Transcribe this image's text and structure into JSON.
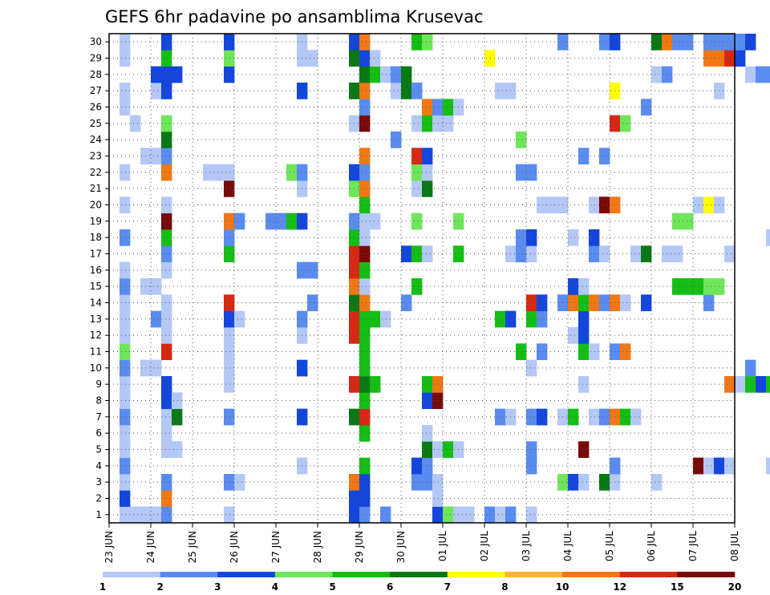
{
  "chart_data": {
    "type": "heatmap",
    "title": "GEFS 6hr padavine po ansamblima Krusevac",
    "xlabel": "",
    "ylabel": "",
    "x_tick_labels": [
      "23 JUN",
      "24 JUN",
      "25 JUN",
      "26 JUN",
      "27 JUN",
      "28 JUN",
      "29 JUN",
      "30 JUN",
      "01 JUL",
      "02 JUL",
      "03 JUL",
      "04 JUL",
      "05 JUL",
      "06 JUL",
      "07 JUL",
      "08 JUL"
    ],
    "y_tick_labels": [
      "1",
      "2",
      "3",
      "4",
      "5",
      "6",
      "7",
      "8",
      "9",
      "10",
      "11",
      "12",
      "13",
      "14",
      "15",
      "16",
      "17",
      "18",
      "19",
      "20",
      "21",
      "22",
      "23",
      "24",
      "25",
      "26",
      "27",
      "28",
      "29",
      "30"
    ],
    "x_range": [
      "23 JUN 00Z",
      "08 JUL 00Z"
    ],
    "x_step_hours": 6,
    "members": 30,
    "grid": true,
    "legend_placement": "bottom",
    "colorbar": {
      "labels": [
        "1",
        "2",
        "3",
        "4",
        "5",
        "6",
        "7",
        "8",
        "10",
        "12",
        "15",
        "20"
      ],
      "colors": [
        "#b4c8f5",
        "#5a8cf0",
        "#1446dc",
        "#6ee65a",
        "#14be14",
        "#0a7814",
        "#ffff00",
        "#ffb432",
        "#f07814",
        "#d72814",
        "#780a0a"
      ]
    },
    "cells": [
      [
        1,
        1,
        1
      ],
      [
        1,
        2,
        1
      ],
      [
        1,
        3,
        1
      ],
      [
        1,
        4,
        1
      ],
      [
        1,
        5,
        2
      ],
      [
        1,
        11,
        1
      ],
      [
        1,
        23,
        3
      ],
      [
        1,
        24,
        2
      ],
      [
        1,
        26,
        2
      ],
      [
        1,
        31,
        3
      ],
      [
        1,
        32,
        4
      ],
      [
        1,
        33,
        1
      ],
      [
        1,
        34,
        1
      ],
      [
        1,
        36,
        2
      ],
      [
        1,
        37,
        1
      ],
      [
        1,
        38,
        2
      ],
      [
        1,
        40,
        1
      ],
      [
        2,
        1,
        3
      ],
      [
        2,
        5,
        9
      ],
      [
        2,
        23,
        3
      ],
      [
        2,
        24,
        3
      ],
      [
        2,
        31,
        1
      ],
      [
        3,
        1,
        1
      ],
      [
        3,
        5,
        2
      ],
      [
        3,
        11,
        2
      ],
      [
        3,
        12,
        1
      ],
      [
        3,
        23,
        9
      ],
      [
        3,
        24,
        3
      ],
      [
        3,
        29,
        2
      ],
      [
        3,
        30,
        2
      ],
      [
        3,
        31,
        1
      ],
      [
        3,
        43,
        4
      ],
      [
        3,
        44,
        3
      ],
      [
        3,
        45,
        1
      ],
      [
        3,
        47,
        6
      ],
      [
        3,
        48,
        1
      ],
      [
        3,
        52,
        1
      ],
      [
        4,
        1,
        2
      ],
      [
        4,
        18,
        1
      ],
      [
        4,
        24,
        5
      ],
      [
        4,
        29,
        3
      ],
      [
        4,
        30,
        2
      ],
      [
        4,
        40,
        2
      ],
      [
        4,
        48,
        2
      ],
      [
        4,
        56,
        11
      ],
      [
        4,
        57,
        1
      ],
      [
        4,
        58,
        3
      ],
      [
        4,
        59,
        1
      ],
      [
        4,
        63,
        1
      ],
      [
        4,
        65,
        1
      ],
      [
        5,
        1,
        1
      ],
      [
        5,
        5,
        1
      ],
      [
        5,
        6,
        1
      ],
      [
        5,
        30,
        6
      ],
      [
        5,
        31,
        1
      ],
      [
        5,
        32,
        5
      ],
      [
        5,
        33,
        1
      ],
      [
        5,
        40,
        2
      ],
      [
        5,
        45,
        11
      ],
      [
        6,
        1,
        1
      ],
      [
        6,
        5,
        1
      ],
      [
        6,
        24,
        5
      ],
      [
        6,
        30,
        1
      ],
      [
        7,
        1,
        2
      ],
      [
        7,
        5,
        1
      ],
      [
        7,
        6,
        6
      ],
      [
        7,
        11,
        2
      ],
      [
        7,
        18,
        3
      ],
      [
        7,
        23,
        6
      ],
      [
        7,
        24,
        10
      ],
      [
        7,
        37,
        2
      ],
      [
        7,
        38,
        1
      ],
      [
        7,
        40,
        2
      ],
      [
        7,
        41,
        3
      ],
      [
        7,
        43,
        1
      ],
      [
        7,
        44,
        5
      ],
      [
        7,
        46,
        1
      ],
      [
        7,
        47,
        2
      ],
      [
        7,
        48,
        9
      ],
      [
        7,
        49,
        5
      ],
      [
        7,
        50,
        1
      ],
      [
        7,
        64,
        3
      ],
      [
        7,
        65,
        2
      ],
      [
        8,
        1,
        1
      ],
      [
        8,
        5,
        3
      ],
      [
        8,
        6,
        1
      ],
      [
        8,
        24,
        5
      ],
      [
        8,
        30,
        3
      ],
      [
        8,
        31,
        11
      ],
      [
        9,
        1,
        1
      ],
      [
        9,
        5,
        3
      ],
      [
        9,
        11,
        1
      ],
      [
        9,
        23,
        10
      ],
      [
        9,
        24,
        6
      ],
      [
        9,
        25,
        5
      ],
      [
        9,
        30,
        5
      ],
      [
        9,
        31,
        9
      ],
      [
        9,
        45,
        1
      ],
      [
        9,
        59,
        9
      ],
      [
        9,
        60,
        1
      ],
      [
        9,
        61,
        5
      ],
      [
        9,
        62,
        3
      ],
      [
        9,
        63,
        5
      ],
      [
        9,
        64,
        3
      ],
      [
        9,
        65,
        3
      ],
      [
        10,
        1,
        2
      ],
      [
        10,
        3,
        1
      ],
      [
        10,
        4,
        1
      ],
      [
        10,
        11,
        1
      ],
      [
        10,
        18,
        3
      ],
      [
        10,
        24,
        5
      ],
      [
        10,
        40,
        1
      ],
      [
        10,
        61,
        2
      ],
      [
        11,
        1,
        4
      ],
      [
        11,
        5,
        10
      ],
      [
        11,
        11,
        1
      ],
      [
        11,
        24,
        5
      ],
      [
        11,
        39,
        5
      ],
      [
        11,
        41,
        2
      ],
      [
        11,
        45,
        5
      ],
      [
        11,
        46,
        1
      ],
      [
        11,
        48,
        2
      ],
      [
        11,
        49,
        9
      ],
      [
        12,
        1,
        1
      ],
      [
        12,
        5,
        1
      ],
      [
        12,
        11,
        1
      ],
      [
        12,
        18,
        1
      ],
      [
        12,
        23,
        10
      ],
      [
        12,
        24,
        5
      ],
      [
        12,
        44,
        1
      ],
      [
        12,
        45,
        3
      ],
      [
        13,
        1,
        1
      ],
      [
        13,
        4,
        2
      ],
      [
        13,
        5,
        1
      ],
      [
        13,
        11,
        3
      ],
      [
        13,
        12,
        1
      ],
      [
        13,
        18,
        2
      ],
      [
        13,
        23,
        10
      ],
      [
        13,
        24,
        5
      ],
      [
        13,
        25,
        5
      ],
      [
        13,
        26,
        1
      ],
      [
        13,
        37,
        5
      ],
      [
        13,
        38,
        3
      ],
      [
        13,
        40,
        5
      ],
      [
        13,
        41,
        2
      ],
      [
        13,
        45,
        3
      ],
      [
        14,
        1,
        1
      ],
      [
        14,
        5,
        1
      ],
      [
        14,
        11,
        10
      ],
      [
        14,
        19,
        2
      ],
      [
        14,
        23,
        6
      ],
      [
        14,
        24,
        9
      ],
      [
        14,
        28,
        2
      ],
      [
        14,
        40,
        10
      ],
      [
        14,
        41,
        3
      ],
      [
        14,
        43,
        2
      ],
      [
        14,
        44,
        9
      ],
      [
        14,
        45,
        5
      ],
      [
        14,
        46,
        9
      ],
      [
        14,
        47,
        2
      ],
      [
        14,
        48,
        9
      ],
      [
        14,
        49,
        1
      ],
      [
        14,
        51,
        3
      ],
      [
        14,
        57,
        2
      ],
      [
        15,
        1,
        2
      ],
      [
        15,
        3,
        1
      ],
      [
        15,
        4,
        1
      ],
      [
        15,
        23,
        9
      ],
      [
        15,
        24,
        1
      ],
      [
        15,
        29,
        5
      ],
      [
        15,
        44,
        3
      ],
      [
        15,
        45,
        1
      ],
      [
        15,
        54,
        5
      ],
      [
        15,
        55,
        5
      ],
      [
        15,
        56,
        5
      ],
      [
        15,
        57,
        4
      ],
      [
        15,
        58,
        4
      ],
      [
        16,
        1,
        1
      ],
      [
        16,
        5,
        1
      ],
      [
        16,
        18,
        2
      ],
      [
        16,
        19,
        2
      ],
      [
        16,
        23,
        10
      ],
      [
        16,
        24,
        5
      ],
      [
        17,
        5,
        2
      ],
      [
        17,
        11,
        5
      ],
      [
        17,
        23,
        10
      ],
      [
        17,
        24,
        11
      ],
      [
        17,
        28,
        3
      ],
      [
        17,
        29,
        5
      ],
      [
        17,
        30,
        1
      ],
      [
        17,
        33,
        5
      ],
      [
        17,
        38,
        1
      ],
      [
        17,
        39,
        2
      ],
      [
        17,
        40,
        1
      ],
      [
        17,
        46,
        2
      ],
      [
        17,
        47,
        1
      ],
      [
        17,
        50,
        1
      ],
      [
        17,
        51,
        6
      ],
      [
        17,
        53,
        1
      ],
      [
        17,
        54,
        1
      ],
      [
        17,
        59,
        1
      ],
      [
        18,
        1,
        2
      ],
      [
        18,
        5,
        5
      ],
      [
        18,
        11,
        2
      ],
      [
        18,
        23,
        5
      ],
      [
        18,
        24,
        1
      ],
      [
        18,
        39,
        2
      ],
      [
        18,
        40,
        3
      ],
      [
        18,
        44,
        1
      ],
      [
        18,
        46,
        3
      ],
      [
        18,
        63,
        1
      ],
      [
        18,
        64,
        1
      ],
      [
        19,
        5,
        11
      ],
      [
        19,
        11,
        9
      ],
      [
        19,
        12,
        2
      ],
      [
        19,
        15,
        2
      ],
      [
        19,
        16,
        2
      ],
      [
        19,
        17,
        5
      ],
      [
        19,
        18,
        3
      ],
      [
        19,
        23,
        2
      ],
      [
        19,
        24,
        1
      ],
      [
        19,
        25,
        1
      ],
      [
        19,
        29,
        4
      ],
      [
        19,
        33,
        4
      ],
      [
        19,
        54,
        4
      ],
      [
        19,
        55,
        4
      ],
      [
        20,
        1,
        1
      ],
      [
        20,
        5,
        1
      ],
      [
        20,
        24,
        5
      ],
      [
        20,
        41,
        1
      ],
      [
        20,
        42,
        1
      ],
      [
        20,
        43,
        1
      ],
      [
        20,
        46,
        1
      ],
      [
        20,
        47,
        11
      ],
      [
        20,
        48,
        9
      ],
      [
        20,
        56,
        1
      ],
      [
        20,
        57,
        7
      ],
      [
        20,
        58,
        1
      ],
      [
        20,
        66,
        3
      ],
      [
        20,
        68,
        11
      ],
      [
        20,
        69,
        6
      ],
      [
        21,
        11,
        11
      ],
      [
        21,
        18,
        1
      ],
      [
        21,
        23,
        4
      ],
      [
        21,
        24,
        9
      ],
      [
        21,
        29,
        1
      ],
      [
        21,
        30,
        6
      ],
      [
        21,
        65,
        2
      ],
      [
        22,
        1,
        1
      ],
      [
        22,
        5,
        9
      ],
      [
        22,
        9,
        1
      ],
      [
        22,
        10,
        1
      ],
      [
        22,
        11,
        1
      ],
      [
        22,
        17,
        4
      ],
      [
        22,
        18,
        2
      ],
      [
        22,
        23,
        3
      ],
      [
        22,
        24,
        2
      ],
      [
        22,
        29,
        4
      ],
      [
        22,
        30,
        1
      ],
      [
        22,
        39,
        2
      ],
      [
        22,
        40,
        2
      ],
      [
        23,
        3,
        1
      ],
      [
        23,
        4,
        1
      ],
      [
        23,
        5,
        2
      ],
      [
        23,
        24,
        9
      ],
      [
        23,
        29,
        10
      ],
      [
        23,
        30,
        3
      ],
      [
        23,
        45,
        2
      ],
      [
        23,
        47,
        2
      ],
      [
        24,
        5,
        6
      ],
      [
        24,
        27,
        2
      ],
      [
        24,
        39,
        4
      ],
      [
        24,
        65,
        4
      ],
      [
        25,
        2,
        1
      ],
      [
        25,
        5,
        4
      ],
      [
        25,
        23,
        1
      ],
      [
        25,
        24,
        11
      ],
      [
        25,
        29,
        1
      ],
      [
        25,
        30,
        5
      ],
      [
        25,
        31,
        1
      ],
      [
        25,
        32,
        1
      ],
      [
        25,
        48,
        10
      ],
      [
        25,
        49,
        4
      ],
      [
        25,
        65,
        4
      ],
      [
        26,
        1,
        1
      ],
      [
        26,
        24,
        2
      ],
      [
        26,
        30,
        9
      ],
      [
        26,
        31,
        2
      ],
      [
        26,
        32,
        5
      ],
      [
        26,
        33,
        1
      ],
      [
        26,
        51,
        2
      ],
      [
        26,
        65,
        1
      ],
      [
        27,
        1,
        1
      ],
      [
        27,
        4,
        1
      ],
      [
        27,
        5,
        3
      ],
      [
        27,
        18,
        3
      ],
      [
        27,
        23,
        6
      ],
      [
        27,
        24,
        9
      ],
      [
        27,
        27,
        1
      ],
      [
        27,
        28,
        6
      ],
      [
        27,
        29,
        2
      ],
      [
        27,
        37,
        1
      ],
      [
        27,
        38,
        1
      ],
      [
        27,
        48,
        7
      ],
      [
        27,
        58,
        1
      ],
      [
        28,
        4,
        3
      ],
      [
        28,
        5,
        3
      ],
      [
        28,
        6,
        3
      ],
      [
        28,
        11,
        3
      ],
      [
        28,
        24,
        6
      ],
      [
        28,
        25,
        5
      ],
      [
        28,
        26,
        1
      ],
      [
        28,
        27,
        2
      ],
      [
        28,
        28,
        6
      ],
      [
        28,
        52,
        1
      ],
      [
        28,
        53,
        2
      ],
      [
        28,
        61,
        1
      ],
      [
        28,
        62,
        2
      ],
      [
        28,
        63,
        2
      ],
      [
        28,
        64,
        3
      ],
      [
        28,
        67,
        1
      ],
      [
        28,
        69,
        9
      ],
      [
        29,
        1,
        1
      ],
      [
        29,
        5,
        5
      ],
      [
        29,
        11,
        4
      ],
      [
        29,
        18,
        1
      ],
      [
        29,
        19,
        1
      ],
      [
        29,
        23,
        6
      ],
      [
        29,
        24,
        3
      ],
      [
        29,
        25,
        1
      ],
      [
        29,
        36,
        7
      ],
      [
        29,
        57,
        9
      ],
      [
        29,
        58,
        9
      ],
      [
        29,
        59,
        10
      ],
      [
        29,
        60,
        3
      ],
      [
        29,
        64,
        2
      ],
      [
        29,
        65,
        1
      ],
      [
        29,
        67,
        1
      ],
      [
        29,
        68,
        3
      ],
      [
        29,
        69,
        5
      ],
      [
        29,
        70,
        4
      ],
      [
        30,
        1,
        1
      ],
      [
        30,
        5,
        3
      ],
      [
        30,
        11,
        3
      ],
      [
        30,
        18,
        1
      ],
      [
        30,
        23,
        3
      ],
      [
        30,
        24,
        9
      ],
      [
        30,
        29,
        5
      ],
      [
        30,
        30,
        4
      ],
      [
        30,
        43,
        2
      ],
      [
        30,
        47,
        2
      ],
      [
        30,
        48,
        3
      ],
      [
        30,
        52,
        6
      ],
      [
        30,
        53,
        9
      ],
      [
        30,
        54,
        2
      ],
      [
        30,
        55,
        2
      ],
      [
        30,
        57,
        2
      ],
      [
        30,
        58,
        2
      ],
      [
        30,
        59,
        2
      ],
      [
        30,
        60,
        2
      ],
      [
        30,
        61,
        3
      ]
    ]
  }
}
